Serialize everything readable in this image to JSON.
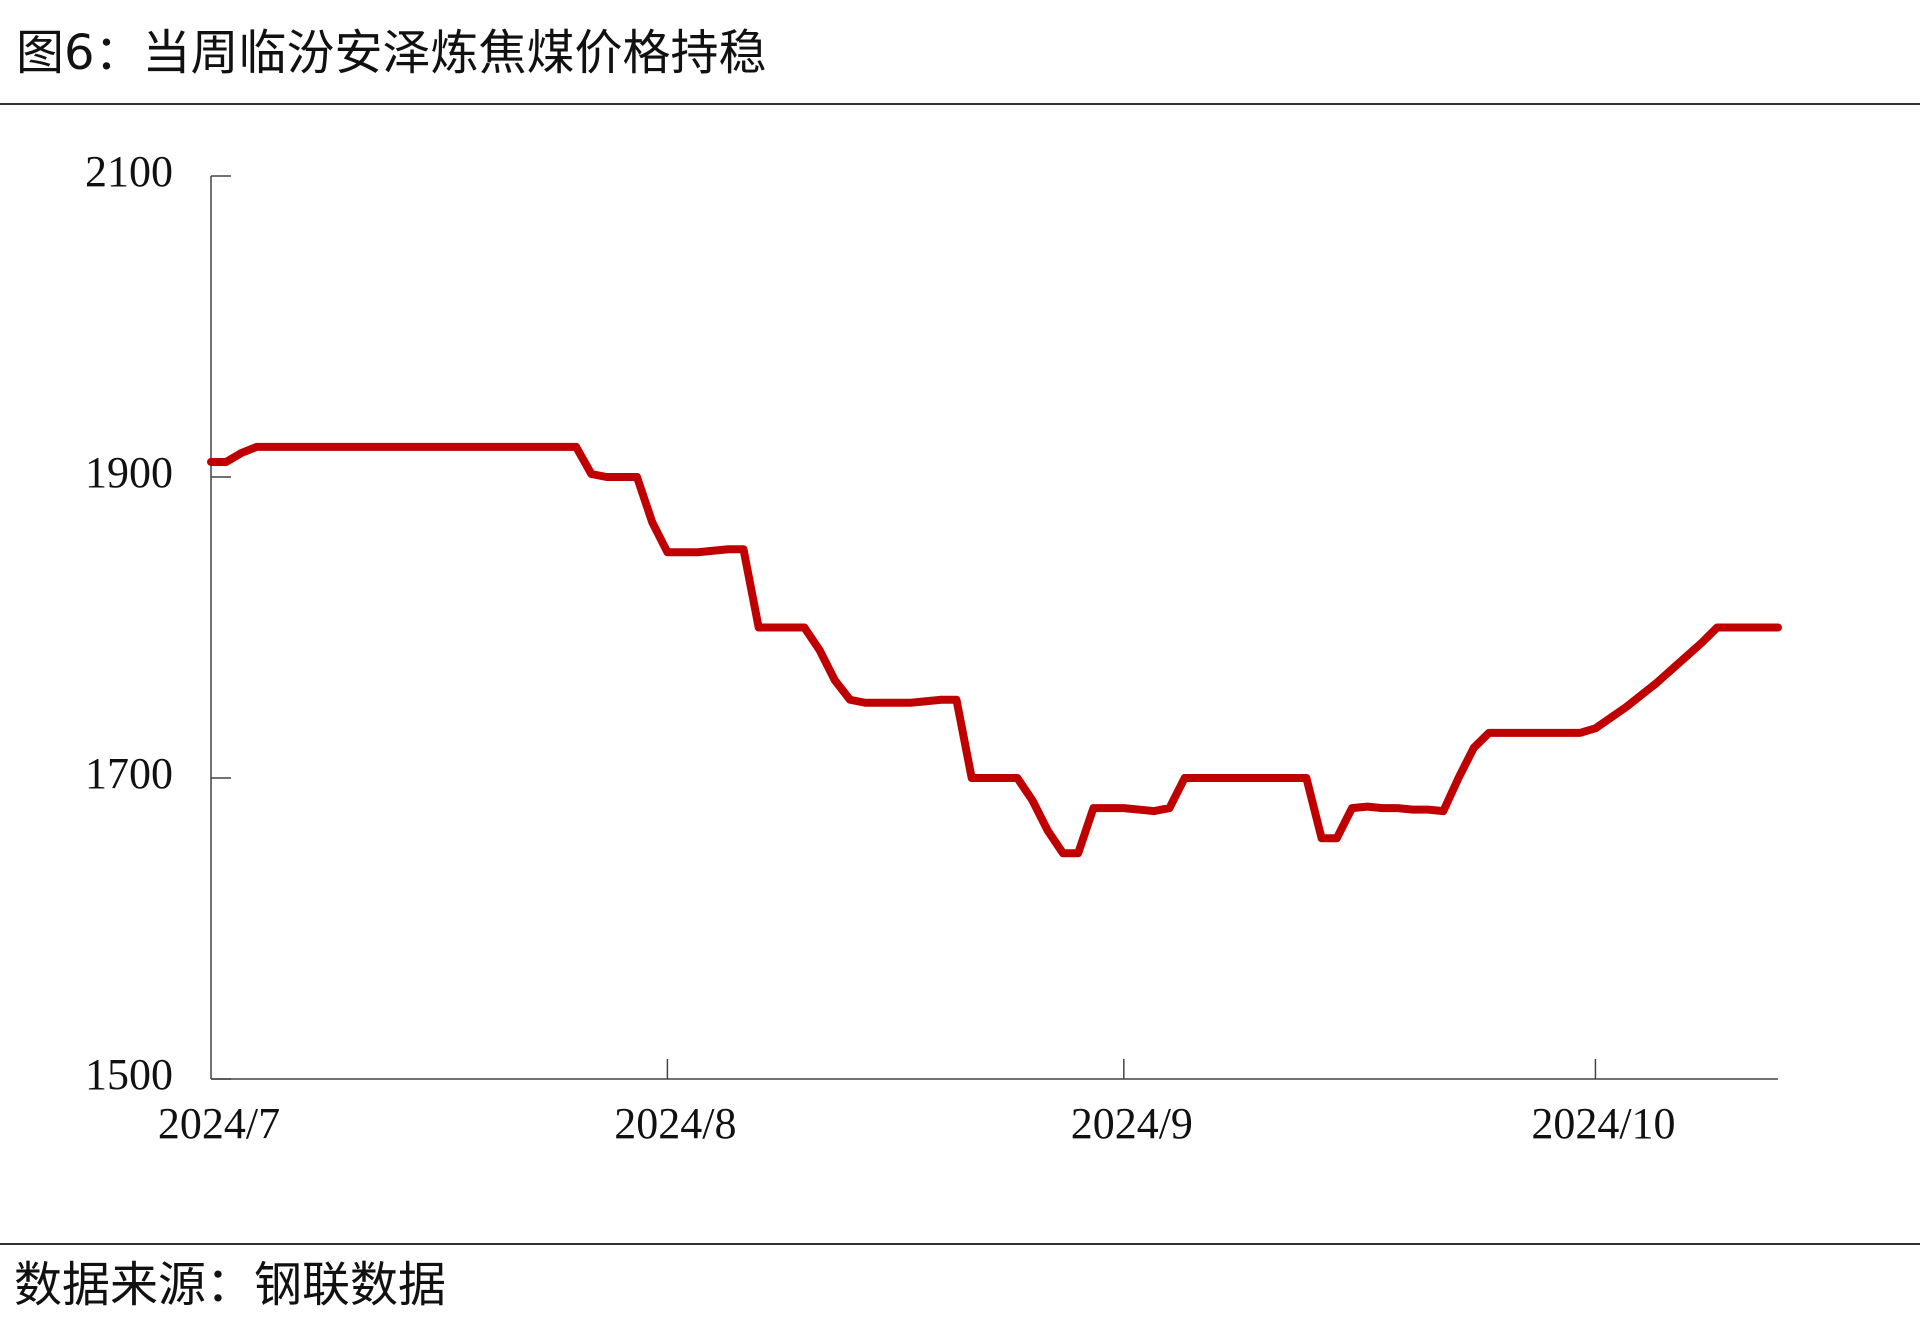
{
  "chart_data": {
    "type": "line",
    "title": "图6：当周临汾安泽炼焦煤价格持稳",
    "source": "数据来源：钢联数据",
    "categories": [
      "2024/7",
      null,
      null,
      null,
      null,
      null,
      null,
      null,
      null,
      null,
      null,
      null,
      null,
      null,
      null,
      null,
      null,
      null,
      null,
      null,
      null,
      null,
      null,
      null,
      null,
      null,
      null,
      null,
      null,
      null,
      "2024/8",
      null,
      null,
      null,
      null,
      null,
      null,
      null,
      null,
      null,
      null,
      null,
      null,
      null,
      null,
      null,
      null,
      null,
      null,
      null,
      null,
      null,
      null,
      null,
      null,
      null,
      null,
      null,
      null,
      null,
      "2024/9",
      null,
      null,
      null,
      null,
      null,
      null,
      null,
      null,
      null,
      null,
      null,
      null,
      null,
      null,
      null,
      null,
      null,
      null,
      null,
      null,
      null,
      null,
      null,
      null,
      null,
      null,
      null,
      null,
      null,
      null,
      "2024/10",
      null,
      null,
      null,
      null,
      null,
      null,
      null,
      null,
      null,
      null,
      null,
      null
    ],
    "series": [
      {
        "color": "#c00000",
        "values": [
          1910,
          1910,
          1916,
          1920,
          1920,
          1920,
          1920,
          1920,
          1920,
          1920,
          1920,
          1920,
          1920,
          1920,
          1920,
          1920,
          1920,
          1920,
          1920,
          1920,
          1920,
          1920,
          1920,
          1920,
          1920,
          1902,
          1900,
          1900,
          1900,
          1870,
          1850,
          1850,
          1850,
          1851,
          1852,
          1852,
          1800,
          1800,
          1800,
          1800,
          1785,
          1765,
          1752,
          1750,
          1750,
          1750,
          1750,
          1751,
          1752,
          1752,
          1700,
          1700,
          1700,
          1700,
          1685,
          1665,
          1650,
          1650,
          1680,
          1680,
          1680,
          1679,
          1678,
          1680,
          1700,
          1700,
          1700,
          1700,
          1700,
          1700,
          1700,
          1700,
          1700,
          1660,
          1660,
          1680,
          1681,
          1680,
          1680,
          1679,
          1679,
          1678,
          1700,
          1720,
          1730,
          1730,
          1730,
          1730,
          1730,
          1730,
          1730,
          1733,
          1740,
          1747,
          1755,
          1763,
          1772,
          1781,
          1790,
          1800,
          1800,
          1800,
          1800,
          1800
        ]
      }
    ],
    "ylim": [
      1500,
      2100
    ],
    "yticks": [
      1500,
      1700,
      1900,
      2100
    ]
  }
}
